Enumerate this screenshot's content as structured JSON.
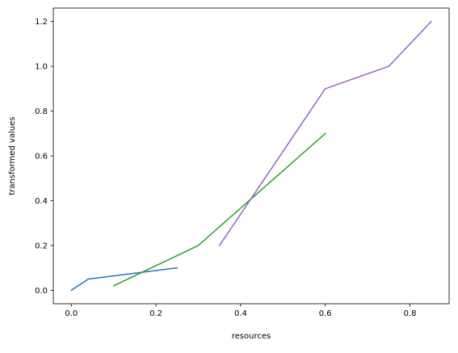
{
  "chart_data": {
    "type": "line",
    "title": "",
    "xlabel": "resources",
    "ylabel": "transformed values",
    "xlim": [
      -0.0425,
      0.8925
    ],
    "ylim": [
      -0.06,
      1.26
    ],
    "grid": false,
    "legend": "none",
    "x_ticks": [
      0.0,
      0.2,
      0.4,
      0.6,
      0.8
    ],
    "x_tick_labels": [
      "0.0",
      "0.2",
      "0.4",
      "0.6",
      "0.8"
    ],
    "y_ticks": [
      0.0,
      0.2,
      0.4,
      0.6,
      0.8,
      1.0,
      1.2
    ],
    "y_tick_labels": [
      "0.0",
      "0.2",
      "0.4",
      "0.6",
      "0.8",
      "1.0",
      "1.2"
    ],
    "series": [
      {
        "color": "#1f77b4",
        "x": [
          0.0,
          0.04,
          0.25
        ],
        "y": [
          0.0,
          0.05,
          0.1
        ]
      },
      {
        "color": "#2ca02c",
        "x": [
          0.1,
          0.3,
          0.6
        ],
        "y": [
          0.02,
          0.2,
          0.7
        ]
      },
      {
        "color": "#9467bd",
        "x": [
          0.35,
          0.6,
          0.75,
          0.85
        ],
        "y": [
          0.2,
          0.9,
          1.0,
          1.2
        ]
      }
    ]
  }
}
